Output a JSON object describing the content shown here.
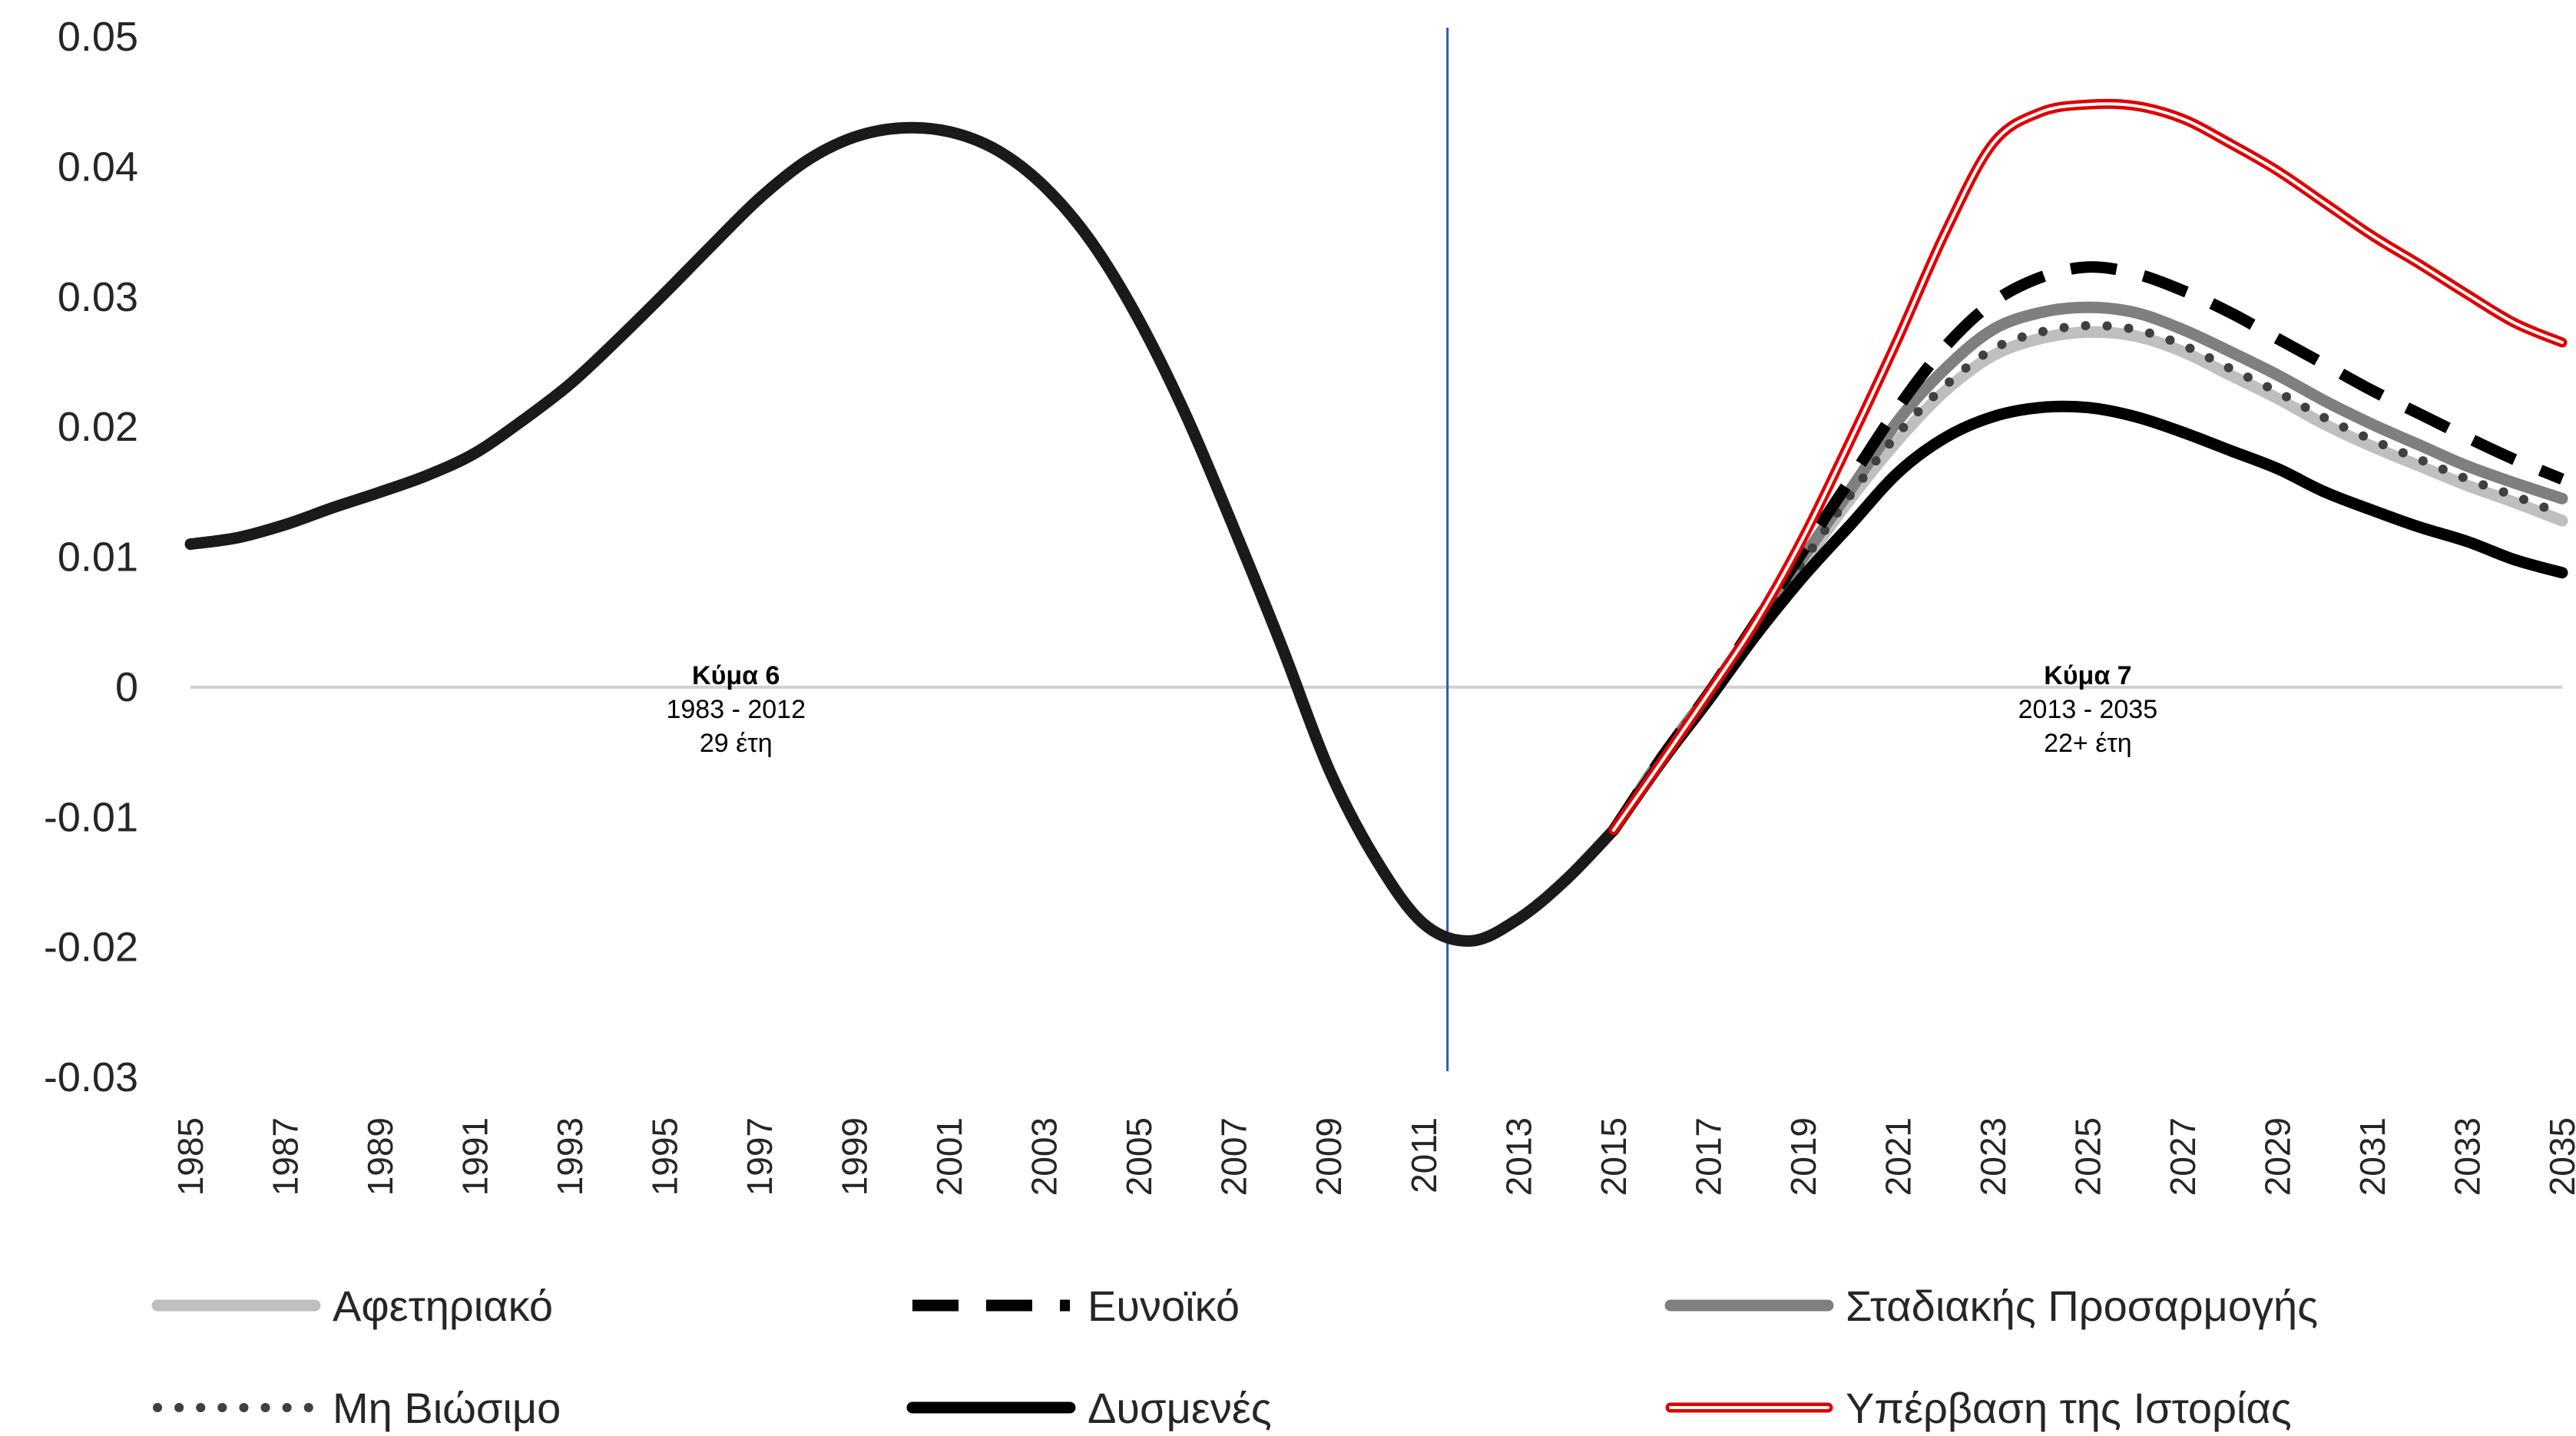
{
  "chart_data": {
    "type": "line",
    "title": "",
    "xlabel": "",
    "ylabel": "",
    "ylim": [
      -0.03,
      0.05
    ],
    "yticks": [
      "0.05",
      "0.04",
      "0.03",
      "0.02",
      "0.01",
      "0",
      "-0.01",
      "-0.02",
      "-0.03"
    ],
    "xlim": [
      1985,
      2035
    ],
    "xticks": [
      "1985",
      "1987",
      "1989",
      "1991",
      "1993",
      "1995",
      "1997",
      "1999",
      "2001",
      "2003",
      "2005",
      "2007",
      "2009",
      "2011",
      "2013",
      "2015",
      "2017",
      "2019",
      "2021",
      "2023",
      "2025",
      "2027",
      "2029",
      "2031",
      "2033",
      "2035"
    ],
    "grid": false,
    "legend_position": "bottom",
    "vertical_marker": {
      "x": 2011.5,
      "color": "#2E5EAA"
    },
    "annotations": [
      {
        "x": 1996.5,
        "y": 0.0,
        "lines": [
          "Κύμα 6",
          "1983 - 2012",
          "29 έτη"
        ]
      },
      {
        "x": 2025,
        "y": 0.0,
        "lines": [
          "Κύμα 7",
          "2013 - 2035",
          "22+ έτη"
        ]
      }
    ],
    "history": {
      "x": [
        1985,
        1986,
        1987,
        1988,
        1989,
        1990,
        1991,
        1992,
        1993,
        1994,
        1995,
        1996,
        1997,
        1998,
        1999,
        2000,
        2001,
        2002,
        2003,
        2004,
        2005,
        2006,
        2007,
        2008,
        2009,
        2010,
        2011,
        2012,
        2013,
        2014,
        2015
      ],
      "values": [
        0.011,
        0.0115,
        0.0125,
        0.0138,
        0.015,
        0.0163,
        0.018,
        0.0205,
        0.0233,
        0.0267,
        0.0303,
        0.034,
        0.0376,
        0.0405,
        0.0423,
        0.043,
        0.0427,
        0.0413,
        0.0385,
        0.0342,
        0.0282,
        0.0208,
        0.0122,
        0.0032,
        -0.0063,
        -0.0133,
        -0.0182,
        -0.0195,
        -0.0178,
        -0.0148,
        -0.011
      ]
    },
    "series": [
      {
        "name": "Αφετηριακό",
        "color": "#BFBFBF",
        "style": "solid-thick",
        "x": [
          2015,
          2016,
          2017,
          2018,
          2019,
          2020,
          2021,
          2022,
          2023,
          2024,
          2025,
          2026,
          2027,
          2028,
          2029,
          2030,
          2031,
          2032,
          2033,
          2034,
          2035
        ],
        "values": [
          -0.011,
          -0.0055,
          -0.0005,
          0.0045,
          0.0095,
          0.0145,
          0.019,
          0.0228,
          0.0255,
          0.0268,
          0.0273,
          0.027,
          0.0258,
          0.024,
          0.0222,
          0.0202,
          0.0185,
          0.017,
          0.0155,
          0.0142,
          0.0128
        ]
      },
      {
        "name": "Ευνοϊκό",
        "color": "#000000",
        "style": "dashed",
        "x": [
          2015,
          2016,
          2017,
          2018,
          2019,
          2020,
          2021,
          2022,
          2023,
          2024,
          2025,
          2026,
          2027,
          2028,
          2029,
          2030,
          2031,
          2032,
          2033,
          2034,
          2035
        ],
        "values": [
          -0.011,
          -0.0055,
          -0.0005,
          0.005,
          0.0105,
          0.016,
          0.0215,
          0.0262,
          0.0296,
          0.0315,
          0.0323,
          0.0318,
          0.0305,
          0.0288,
          0.0268,
          0.0248,
          0.0228,
          0.021,
          0.0192,
          0.0175,
          0.016
        ]
      },
      {
        "name": "Σταδιακής Προσαρμογής",
        "color": "#7F7F7F",
        "style": "solid-thick",
        "x": [
          2015,
          2016,
          2017,
          2018,
          2019,
          2020,
          2021,
          2022,
          2023,
          2024,
          2025,
          2026,
          2027,
          2028,
          2029,
          2030,
          2031,
          2032,
          2033,
          2034,
          2035
        ],
        "values": [
          -0.011,
          -0.0055,
          -0.0005,
          0.0048,
          0.01,
          0.0152,
          0.0205,
          0.0245,
          0.0275,
          0.0288,
          0.0292,
          0.0288,
          0.0275,
          0.0258,
          0.024,
          0.022,
          0.0202,
          0.0186,
          0.017,
          0.0157,
          0.0145
        ]
      },
      {
        "name": "Μη Βιώσιμο",
        "color": "#404040",
        "style": "dotted",
        "x": [
          2015,
          2016,
          2017,
          2018,
          2019,
          2020,
          2021,
          2022,
          2023,
          2024,
          2025,
          2026,
          2027,
          2028,
          2029,
          2030,
          2031,
          2032,
          2033,
          2034,
          2035
        ],
        "values": [
          -0.011,
          -0.0055,
          -0.0005,
          0.0045,
          0.0097,
          0.0148,
          0.0195,
          0.0232,
          0.026,
          0.0273,
          0.0278,
          0.0275,
          0.0263,
          0.0245,
          0.0227,
          0.0207,
          0.019,
          0.0175,
          0.016,
          0.0147,
          0.0133
        ]
      },
      {
        "name": "Δυσμενές",
        "color": "#000000",
        "style": "solid-black",
        "x": [
          2015,
          2016,
          2017,
          2018,
          2019,
          2020,
          2021,
          2022,
          2023,
          2024,
          2025,
          2026,
          2027,
          2028,
          2029,
          2030,
          2031,
          2032,
          2033,
          2034,
          2035
        ],
        "values": [
          -0.011,
          -0.0058,
          -0.001,
          0.004,
          0.0085,
          0.0125,
          0.0165,
          0.0192,
          0.0208,
          0.0215,
          0.0215,
          0.0208,
          0.0196,
          0.0182,
          0.0168,
          0.015,
          0.0136,
          0.0123,
          0.0112,
          0.0098,
          0.0088
        ]
      },
      {
        "name": "Υπέρβαση της Ιστορίας",
        "color": "#E10000",
        "style": "double-red",
        "x": [
          2015,
          2016,
          2017,
          2018,
          2019,
          2020,
          2021,
          2022,
          2023,
          2024,
          2025,
          2026,
          2027,
          2028,
          2029,
          2030,
          2031,
          2032,
          2033,
          2034,
          2035
        ],
        "values": [
          -0.011,
          -0.0058,
          -0.0005,
          0.005,
          0.0115,
          0.019,
          0.0268,
          0.035,
          0.0418,
          0.0442,
          0.0448,
          0.0447,
          0.0437,
          0.0418,
          0.0397,
          0.0372,
          0.0347,
          0.0325,
          0.0302,
          0.028,
          0.0265
        ]
      }
    ]
  }
}
